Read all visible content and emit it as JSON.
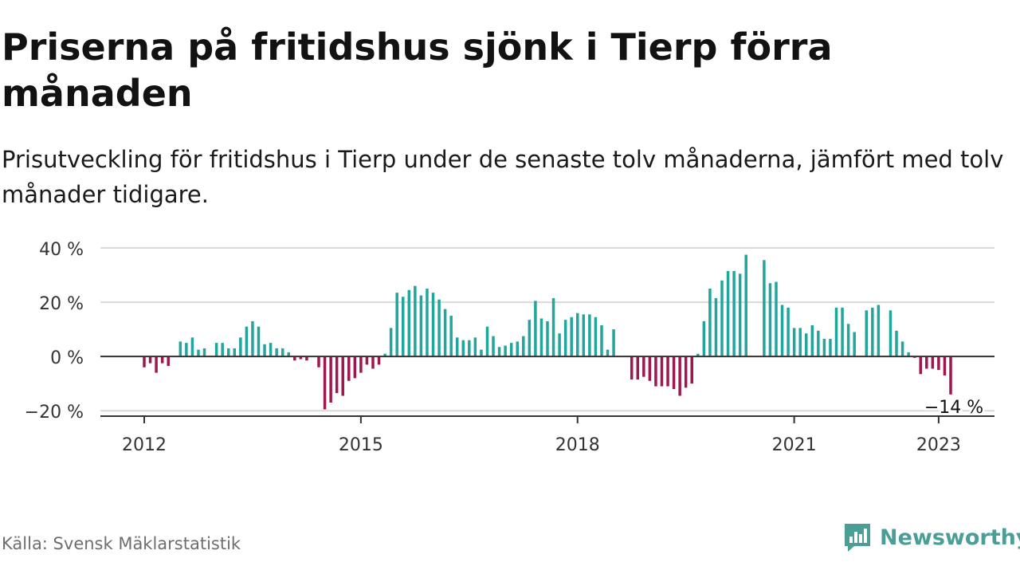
{
  "title": "Priserna på fritidshus sjönk i Tierp förra månaden",
  "subtitle": "Prisutveckling för fritidshus i Tierp under de senaste tolv månaderna, jämfört med tolv månader tidigare.",
  "source": "Källa: Svensk Mäklarstatistik",
  "brand": {
    "name": "Newsworthy",
    "icon": "newsworthy-logo-icon"
  },
  "colors": {
    "positive": "#21a69b",
    "negative": "#a0174f",
    "gridline": "#d9d9d9",
    "zero_line": "#333333",
    "axis": "#333333",
    "text": "#333333",
    "brand": "#4a9e96"
  },
  "chart_data": {
    "type": "bar",
    "unit": "%",
    "ylim": [
      -22,
      40
    ],
    "y_ticks": [
      {
        "value": 40,
        "label": "40 %"
      },
      {
        "value": 20,
        "label": "20 %"
      },
      {
        "value": 0,
        "label": "0 %"
      },
      {
        "value": -20,
        "label": "−20 %"
      }
    ],
    "x_ticks": [
      {
        "year": 2012,
        "label": "2012"
      },
      {
        "year": 2015,
        "label": "2015"
      },
      {
        "year": 2018,
        "label": "2018"
      },
      {
        "year": 2021,
        "label": "2021"
      },
      {
        "year": 2023,
        "label": "2023"
      }
    ],
    "grid": true,
    "start": "2011-01",
    "last_value_label": "−14 %",
    "values": [
      null,
      null,
      null,
      null,
      null,
      null,
      null,
      null,
      null,
      null,
      null,
      null,
      -4,
      -2.5,
      -6,
      -2.5,
      -3.5,
      null,
      5.5,
      5,
      7,
      2.5,
      3,
      null,
      5,
      5,
      3,
      3,
      7,
      11,
      13,
      11,
      4.5,
      5,
      3,
      3,
      1.5,
      -1.5,
      -1,
      -1.5,
      null,
      -4,
      -19.5,
      -17,
      -13.5,
      -14.5,
      -9,
      -8,
      -6,
      -3,
      -4.5,
      -3,
      1,
      10.5,
      23.5,
      22,
      24.5,
      26,
      22.5,
      25,
      23.5,
      21,
      17.5,
      15,
      7,
      6,
      6,
      7,
      2.5,
      11,
      7.5,
      3.5,
      4,
      5,
      5.5,
      7.5,
      13.5,
      20.5,
      14,
      13,
      21.5,
      8.5,
      13.5,
      14.5,
      16,
      15.5,
      15.5,
      14.5,
      11.5,
      2.5,
      10,
      null,
      null,
      -8.5,
      -8.5,
      -7.5,
      -9,
      -11,
      -11,
      -11,
      -12,
      -14.5,
      -11.5,
      -10,
      1,
      13,
      25,
      21.5,
      28,
      31.5,
      31.5,
      30.5,
      37.5,
      null,
      null,
      35.5,
      27,
      27.5,
      19,
      18,
      10.5,
      10.5,
      8.5,
      11.5,
      9.5,
      6.5,
      6.5,
      18,
      18,
      12,
      9,
      null,
      17,
      18,
      19,
      null,
      17,
      9.5,
      5.5,
      1.5,
      -0.5,
      -6.5,
      -4.5,
      -4.5,
      -5,
      -7,
      -14
    ]
  }
}
